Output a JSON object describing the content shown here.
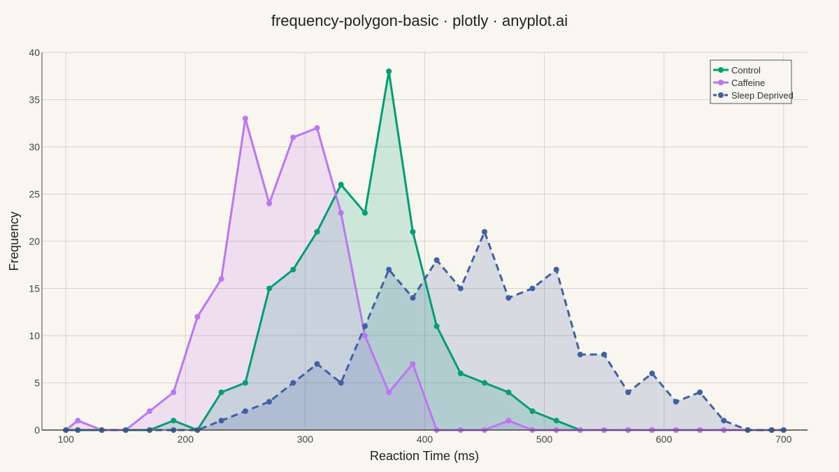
{
  "chart_data": {
    "type": "line",
    "title": "frequency-polygon-basic · plotly · anyplot.ai",
    "xlabel": "Reaction Time (ms)",
    "ylabel": "Frequency",
    "xlim": [
      80,
      720
    ],
    "ylim": [
      0,
      40
    ],
    "xticks": [
      100,
      200,
      300,
      400,
      500,
      600,
      700
    ],
    "yticks": [
      0,
      5,
      10,
      15,
      20,
      25,
      30,
      35,
      40
    ],
    "grid": true,
    "legend_position": "top-right",
    "x": [
      100,
      110,
      130,
      150,
      170,
      190,
      210,
      230,
      250,
      270,
      290,
      310,
      330,
      350,
      370,
      390,
      410,
      430,
      450,
      470,
      490,
      510,
      530,
      550,
      570,
      590,
      610,
      630,
      650,
      670,
      690,
      700
    ],
    "series": [
      {
        "name": "Control",
        "color": "#009e73",
        "dash": "solid",
        "fill": "rgba(0,158,115,0.18)",
        "values": [
          0,
          0,
          0,
          0,
          0,
          1,
          0,
          4,
          5,
          15,
          17,
          21,
          26,
          23,
          38,
          21,
          11,
          6,
          5,
          4,
          2,
          1,
          0,
          0,
          0,
          0,
          0,
          0,
          0,
          0,
          0,
          0
        ]
      },
      {
        "name": "Caffeine",
        "color": "#bd75f0",
        "dash": "solid",
        "fill": "rgba(189,117,240,0.18)",
        "values": [
          0,
          1,
          0,
          0,
          2,
          4,
          12,
          16,
          33,
          24,
          31,
          32,
          23,
          10,
          4,
          7,
          0,
          0,
          0,
          1,
          0,
          0,
          0,
          0,
          0,
          0,
          0,
          0,
          0,
          0,
          0,
          0
        ]
      },
      {
        "name": "Sleep Deprived",
        "color": "#3f61a3",
        "dash": "dash",
        "fill": "rgba(63,97,163,0.18)",
        "values": [
          0,
          0,
          0,
          0,
          0,
          0,
          0,
          1,
          2,
          3,
          5,
          7,
          5,
          11,
          17,
          14,
          18,
          15,
          21,
          14,
          15,
          17,
          8,
          8,
          4,
          6,
          3,
          4,
          1,
          0,
          0,
          0
        ]
      }
    ]
  }
}
